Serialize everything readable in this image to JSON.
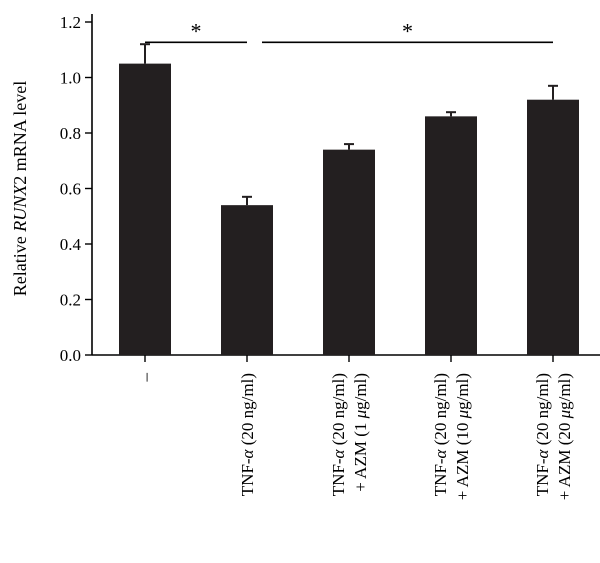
{
  "chart_data": {
    "type": "bar",
    "ylabel_parts": [
      {
        "text": "Relative ",
        "italic": false
      },
      {
        "text": "RUNX",
        "italic": true
      },
      {
        "text": "2 mRNA level",
        "italic": false
      }
    ],
    "ylim": [
      0,
      1.2
    ],
    "yticks": [
      "0.0",
      "0.2",
      "0.4",
      "0.6",
      "0.8",
      "1.0",
      "1.2"
    ],
    "categories": [
      [
        "–"
      ],
      [
        "TNF-α (20 ng/ml)"
      ],
      [
        "TNF-α (20 ng/ml)",
        "+ AZM (1 μg/ml)"
      ],
      [
        "TNF-α (20 ng/ml)",
        "+ AZM (10 μg/ml)"
      ],
      [
        "TNF-α (20 ng/ml)",
        "+ AZM (20 μg/ml)"
      ]
    ],
    "values": [
      1.05,
      0.54,
      0.74,
      0.86,
      0.92
    ],
    "errors": [
      0.07,
      0.03,
      0.02,
      0.015,
      0.05
    ],
    "color": "#231f20",
    "significance": [
      {
        "from": 0,
        "to": 1,
        "y": 1.17,
        "label": "*"
      },
      {
        "from": 1,
        "to": 4,
        "y": 1.17,
        "label": "*"
      }
    ],
    "grid": false
  }
}
